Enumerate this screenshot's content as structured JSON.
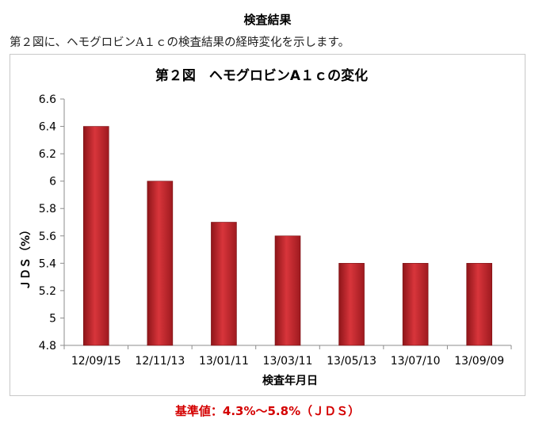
{
  "page": {
    "heading": "検査結果",
    "intro": "第２図に、ヘモグロビンA１ｃの検査結果の経時変化を示します。",
    "footnote": "基準値：4.3%～5.8%（ＪＤＳ）"
  },
  "chart_data": {
    "type": "bar",
    "title": "第２図　ヘモグロビンA１ｃの変化",
    "xlabel": "検査年月日",
    "ylabel": "ＪＤＳ（%）",
    "categories": [
      "12/09/15",
      "12/11/13",
      "13/01/11",
      "13/03/11",
      "13/05/13",
      "13/07/10",
      "13/09/09"
    ],
    "values": [
      6.4,
      6.0,
      5.7,
      5.6,
      5.4,
      5.4,
      5.4
    ],
    "ylim": [
      4.8,
      6.6
    ],
    "yticks": [
      "4.8",
      "5",
      "5.2",
      "5.4",
      "5.6",
      "5.8",
      "6",
      "6.2",
      "6.4",
      "6.6"
    ],
    "grid": false,
    "legend": "none",
    "bar_color": "#c0272d"
  }
}
